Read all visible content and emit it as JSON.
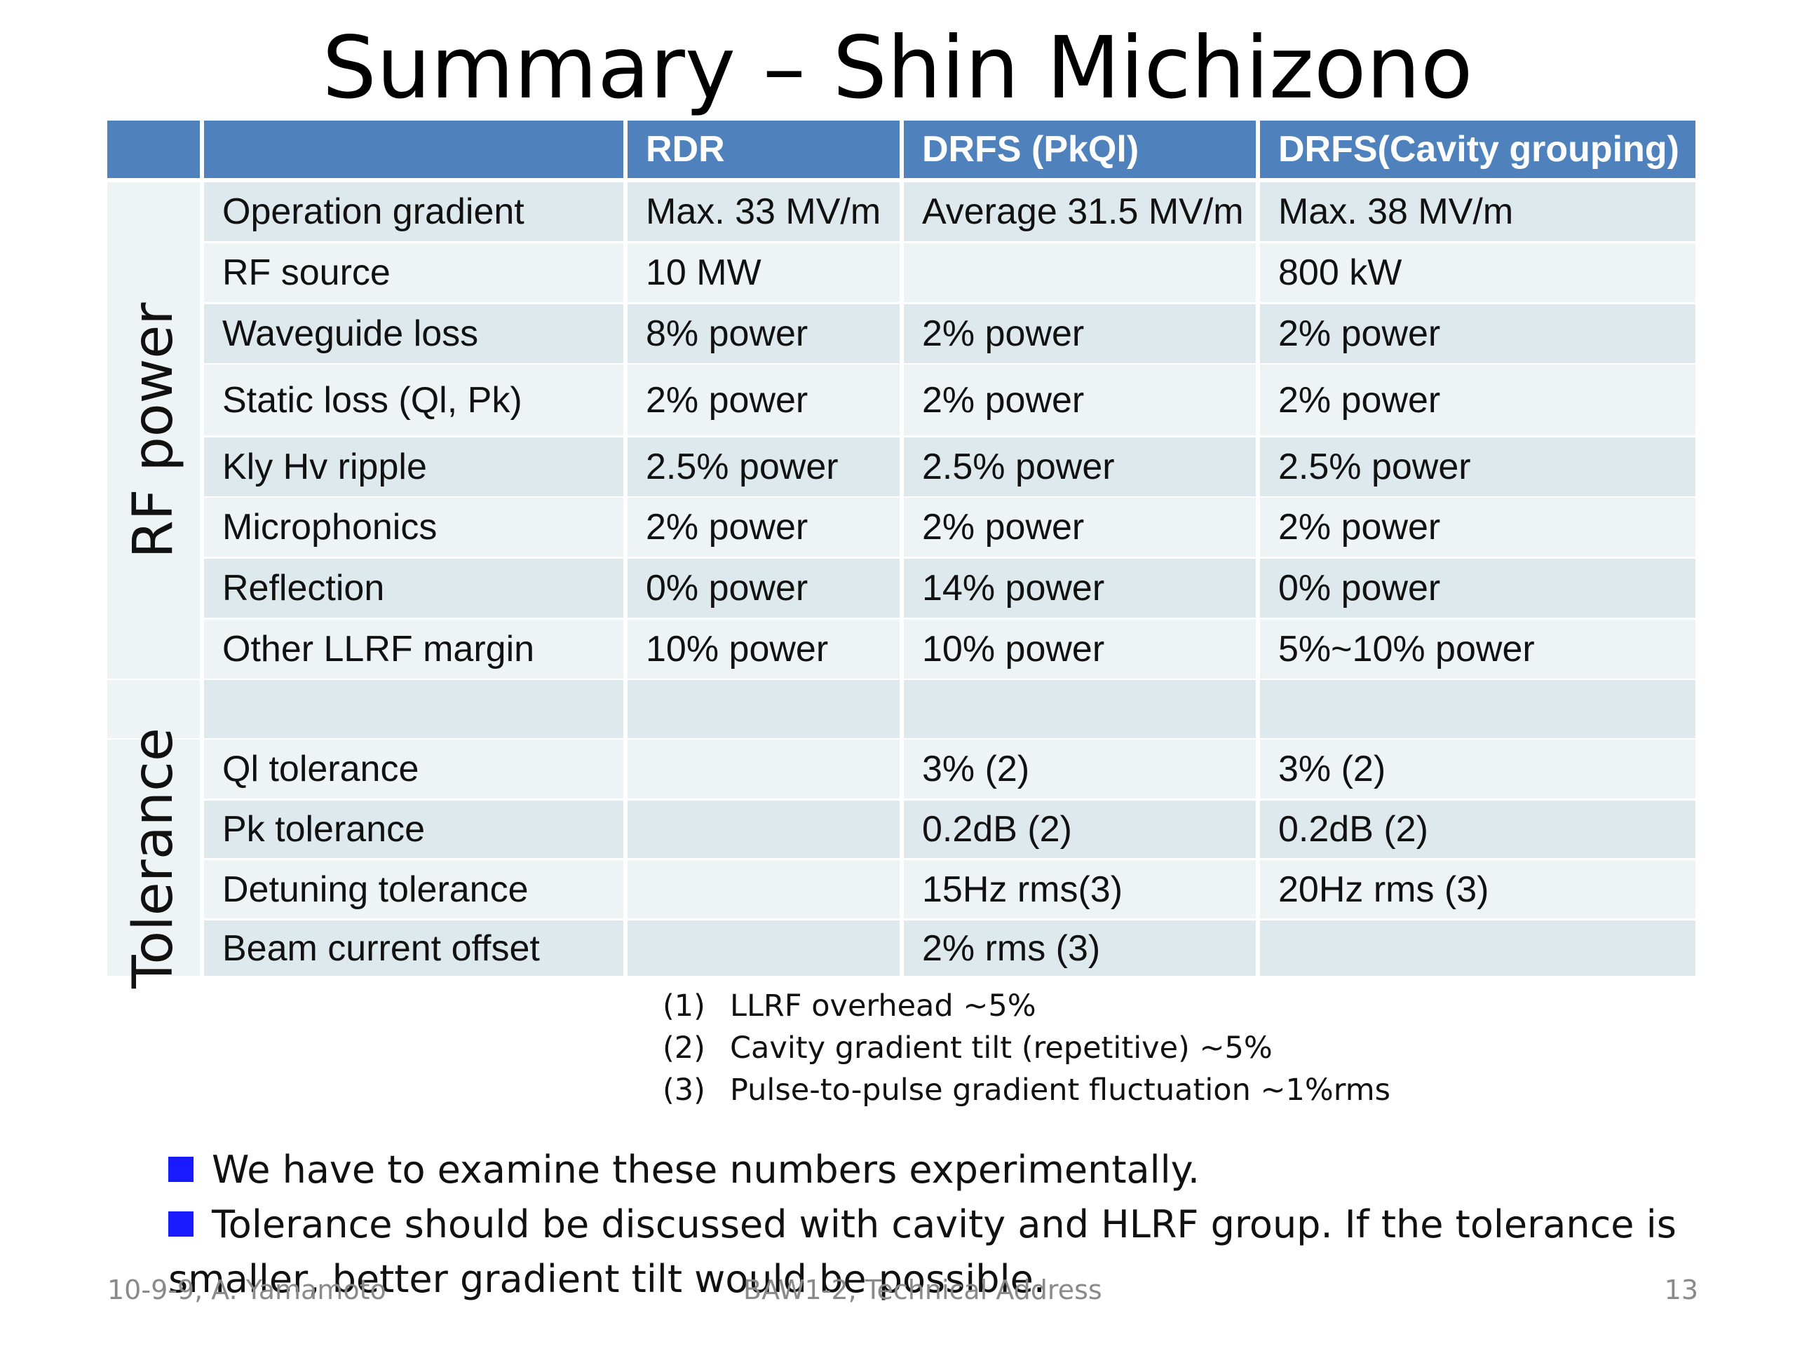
{
  "title": "Summary – Shin Michizono",
  "table": {
    "headers": [
      "",
      "",
      "RDR",
      "DRFS (PkQl)",
      "DRFS(Cavity grouping)"
    ],
    "group_rf": "RF power",
    "group_tol": "Tolerance",
    "rows": [
      {
        "label": "Operation gradient",
        "rdr": "Max. 33 MV/m",
        "pkql": "Average 31.5 MV/m",
        "cg": "Max. 38 MV/m"
      },
      {
        "label": "RF source",
        "rdr": "10 MW",
        "pkql": "",
        "cg": "800 kW"
      },
      {
        "label": "Waveguide loss",
        "rdr": "8% power",
        "pkql": "2% power",
        "cg": "2% power"
      },
      {
        "label": "Static loss (Ql, Pk)",
        "rdr": "2% power",
        "pkql": "2% power",
        "cg": "2% power"
      },
      {
        "label": "Kly Hv ripple",
        "rdr": "2.5% power",
        "pkql": "2.5% power",
        "cg": "2.5% power"
      },
      {
        "label": "Microphonics",
        "rdr": "2% power",
        "pkql": "2% power",
        "cg": "2% power"
      },
      {
        "label": "Reflection",
        "rdr": "0% power",
        "pkql": "14% power",
        "cg": "0% power"
      },
      {
        "label": "Other LLRF margin",
        "rdr": "10% power",
        "pkql": "10% power",
        "cg": "5%~10% power"
      },
      {
        "label": "",
        "rdr": "",
        "pkql": "",
        "cg": ""
      },
      {
        "label": "Ql tolerance",
        "rdr": "",
        "pkql": "3% (2)",
        "cg": "3% (2)"
      },
      {
        "label": "Pk tolerance",
        "rdr": "",
        "pkql": "0.2dB (2)",
        "cg": "0.2dB (2)"
      },
      {
        "label": "Detuning tolerance",
        "rdr": "",
        "pkql": "15Hz rms(3)",
        "cg": "20Hz rms (3)"
      },
      {
        "label": "Beam current offset",
        "rdr": "",
        "pkql": "2% rms (3)",
        "cg": ""
      }
    ]
  },
  "notes": [
    {
      "num": "(1)",
      "text": "LLRF overhead ~5%"
    },
    {
      "num": "(2)",
      "text": "Cavity gradient tilt (repetitive) ~5%"
    },
    {
      "num": "(3)",
      "text": "Pulse-to-pulse gradient fluctuation ~1%rms"
    }
  ],
  "bullets": [
    "We have to examine these numbers experimentally.",
    "Tolerance should be discussed with cavity  and HLRF group.  If the tolerance is",
    "smaller, better gradient tilt would be possible."
  ],
  "footer": {
    "left": "10-9-9, A. Yamamoto",
    "center": "BAW1-2, Technical Address",
    "page": "13"
  },
  "colors": {
    "header_bg": "#4f81bd",
    "row_odd": "#dde9ec",
    "row_even": "#eef4f6",
    "bullet": "#1a1aff"
  }
}
